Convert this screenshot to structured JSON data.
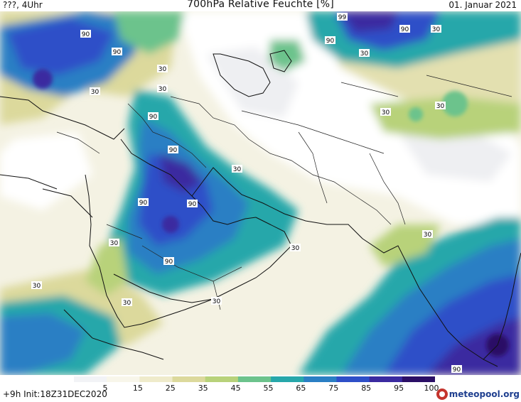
{
  "header": {
    "left": "???, 4Uhr",
    "title": "700hPa Relative Feuchte [%]",
    "right": "01. Januar 2021"
  },
  "footer": {
    "left": "+9h  Init:18Z31DEC2020",
    "brand": "meteopool.org"
  },
  "colorbar": {
    "ticks": [
      "5",
      "15",
      "25",
      "35",
      "45",
      "55",
      "65",
      "75",
      "85",
      "95",
      "100"
    ],
    "colors": [
      "#f2f3f6",
      "#f8f6ea",
      "#efebcb",
      "#dcd99c",
      "#b8d27a",
      "#6cc38c",
      "#27a7aa",
      "#2a7fc4",
      "#2e4fc8",
      "#3a2aa0",
      "#2b0f66"
    ]
  },
  "contour_labels": [
    "90",
    "90",
    "99",
    "90",
    "30",
    "30",
    "30",
    "30",
    "30",
    "90",
    "30",
    "90",
    "30",
    "90",
    "90",
    "30",
    "30",
    "90",
    "30",
    "30",
    "30",
    "30",
    "90",
    "90",
    "30"
  ]
}
